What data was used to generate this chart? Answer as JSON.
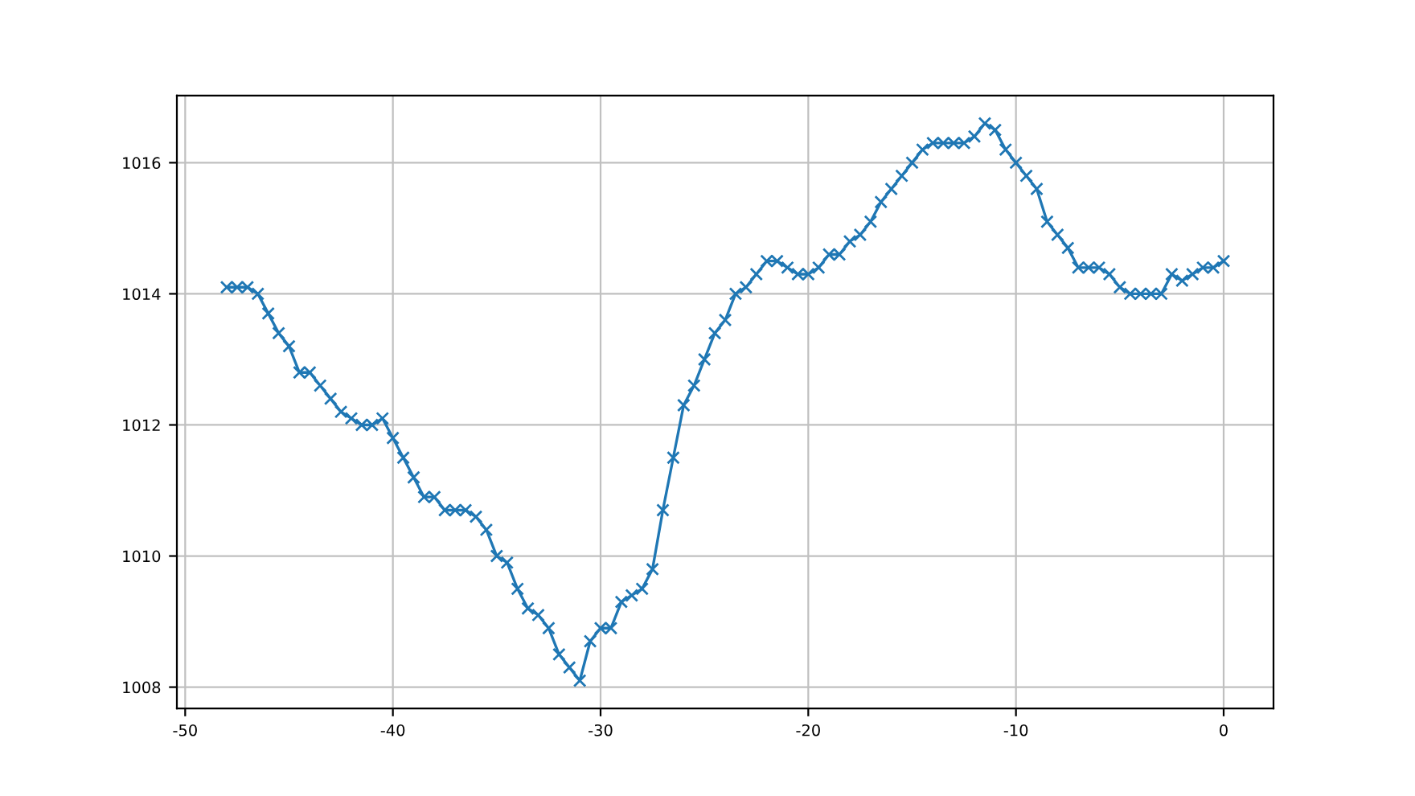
{
  "chart_data": {
    "type": "line",
    "x": [
      -48,
      -47.5,
      -47,
      -46.5,
      -46,
      -45.5,
      -45,
      -44.5,
      -44,
      -43.5,
      -43,
      -42.5,
      -42,
      -41.5,
      -41,
      -40.5,
      -40,
      -39.5,
      -39,
      -38.5,
      -38,
      -37.5,
      -37,
      -36.5,
      -36,
      -35.5,
      -35,
      -34.5,
      -34,
      -33.5,
      -33,
      -32.5,
      -32,
      -31.5,
      -31,
      -30.5,
      -30,
      -29.5,
      -29,
      -28.5,
      -28,
      -27.5,
      -27,
      -26.5,
      -26,
      -25.5,
      -25,
      -24.5,
      -24,
      -23.5,
      -23,
      -22.5,
      -22,
      -21.5,
      -21,
      -20.5,
      -20,
      -19.5,
      -19,
      -18.5,
      -18,
      -17.5,
      -17,
      -16.5,
      -16,
      -15.5,
      -15,
      -14.5,
      -14,
      -13.5,
      -13,
      -12.5,
      -12,
      -11.5,
      -11,
      -10.5,
      -10,
      -9.5,
      -9,
      -8.5,
      -8,
      -7.5,
      -7,
      -6.5,
      -6,
      -5.5,
      -5,
      -4.5,
      -4,
      -3.5,
      -3,
      -2.5,
      -2,
      -1.5,
      -1,
      -0.5,
      0
    ],
    "series": [
      {
        "color": "#1f77b4",
        "values": [
          1014.1,
          1014.1,
          1014.1,
          1014.0,
          1013.7,
          1013.4,
          1013.2,
          1012.8,
          1012.8,
          1012.6,
          1012.4,
          1012.2,
          1012.1,
          1012.0,
          1012.0,
          1012.1,
          1011.8,
          1011.5,
          1011.2,
          1010.9,
          1010.9,
          1010.7,
          1010.7,
          1010.7,
          1010.6,
          1010.4,
          1010.0,
          1009.9,
          1009.5,
          1009.2,
          1009.1,
          1008.9,
          1008.5,
          1008.3,
          1008.1,
          1008.7,
          1008.9,
          1008.9,
          1009.3,
          1009.4,
          1009.5,
          1009.8,
          1010.7,
          1011.5,
          1012.3,
          1012.6,
          1013.0,
          1013.4,
          1013.6,
          1014.0,
          1014.1,
          1014.3,
          1014.5,
          1014.5,
          1014.4,
          1014.3,
          1014.3,
          1014.4,
          1014.6,
          1014.6,
          1014.8,
          1014.9,
          1015.1,
          1015.4,
          1015.6,
          1015.8,
          1016.0,
          1016.2,
          1016.3,
          1016.3,
          1016.3,
          1016.3,
          1016.4,
          1016.6,
          1016.5,
          1016.2,
          1016.0,
          1015.8,
          1015.6,
          1015.1,
          1014.9,
          1014.7,
          1014.4,
          1014.4,
          1014.4,
          1014.3,
          1014.1,
          1014.0,
          1014.0,
          1014.0,
          1014.0,
          1014.3,
          1014.2,
          1014.3,
          1014.4,
          1014.4,
          1014.5
        ]
      }
    ],
    "xlim": [
      -50.4,
      2.4
    ],
    "ylim": [
      1007.675,
      1017.025
    ],
    "xticks": [
      -50,
      -40,
      -30,
      -20,
      -10,
      0
    ],
    "yticks": [
      1008,
      1010,
      1012,
      1014,
      1016
    ],
    "grid": true,
    "marker": "cross",
    "line_style": "solid"
  }
}
